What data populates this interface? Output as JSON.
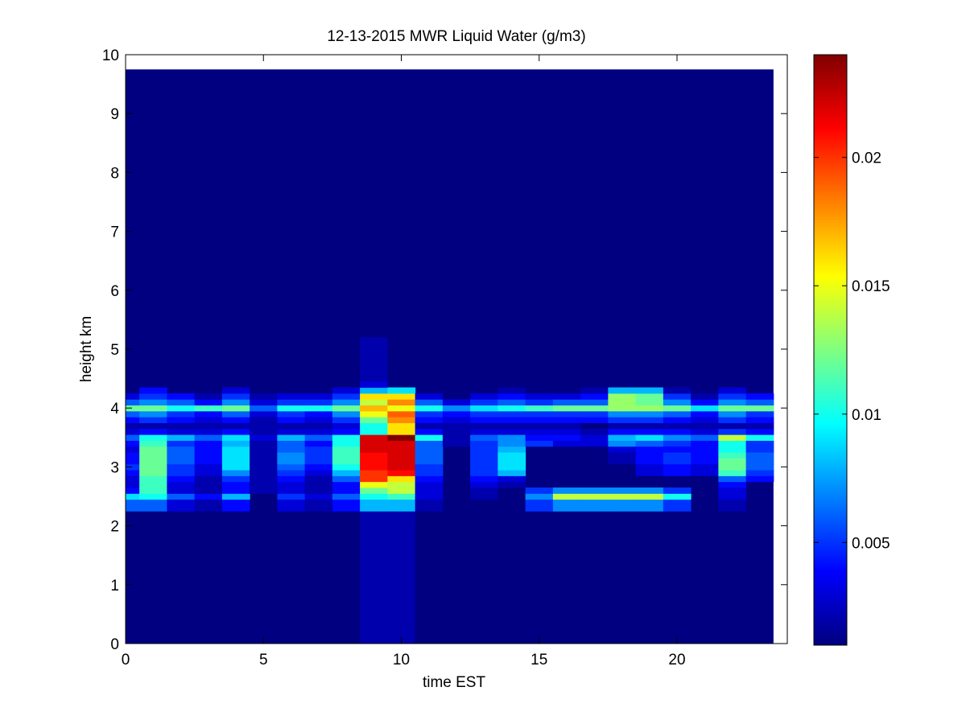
{
  "chart_data": {
    "type": "heatmap",
    "title": "12-13-2015 MWR Liquid Water (g/m3)",
    "xlabel": "time EST",
    "ylabel": "height km",
    "xlim": [
      0,
      24
    ],
    "ylim": [
      0,
      10
    ],
    "x_ticks": [
      "0",
      "5",
      "10",
      "15",
      "20"
    ],
    "x_tick_values": [
      0,
      5,
      10,
      15,
      20
    ],
    "y_ticks": [
      "0",
      "1",
      "2",
      "3",
      "4",
      "5",
      "6",
      "7",
      "8",
      "9",
      "10"
    ],
    "y_tick_values": [
      0,
      1,
      2,
      3,
      4,
      5,
      6,
      7,
      8,
      9,
      10
    ],
    "colormap": "jet",
    "colorbar": {
      "range": [
        0.001,
        0.024
      ],
      "ticks": [
        "0.005",
        "0.01",
        "0.015",
        "0.02"
      ],
      "tick_values": [
        0.005,
        0.01,
        0.015,
        0.02
      ]
    },
    "time_bin_edges": [
      0,
      0.5,
      1.5,
      2.5,
      3.5,
      4.5,
      5.5,
      6.5,
      7.5,
      8.5,
      9.5,
      10.5,
      11.5,
      12.5,
      13.5,
      14.5,
      15.5,
      16.5,
      17.5,
      18.5,
      19.5,
      20.5,
      21.5,
      22.5,
      23.5
    ],
    "background_value": 0.001,
    "data_top_km": 9.75,
    "height_levels_km": [
      2.1,
      2.4,
      2.5,
      2.6,
      2.7,
      2.8,
      2.9,
      3.0,
      3.1,
      3.2,
      3.3,
      3.4,
      3.5,
      3.6,
      3.7,
      3.8,
      3.9,
      4.0,
      4.1,
      4.2,
      4.3,
      4.4
    ],
    "column_profiles": [
      [
        0.001,
        0.006,
        0.009,
        0.004,
        0.003,
        0.003,
        0.004,
        0.005,
        0.004,
        0.004,
        0.003,
        0.004,
        0.006,
        0.003,
        0.002,
        0.004,
        0.006,
        0.012,
        0.006,
        0.003,
        0.001,
        0.001
      ],
      [
        0.001,
        0.006,
        0.01,
        0.011,
        0.011,
        0.011,
        0.012,
        0.012,
        0.012,
        0.012,
        0.012,
        0.011,
        0.01,
        0.004,
        0.002,
        0.005,
        0.007,
        0.012,
        0.007,
        0.005,
        0.004,
        0.001
      ],
      [
        0.001,
        0.003,
        0.006,
        0.003,
        0.003,
        0.004,
        0.005,
        0.005,
        0.006,
        0.006,
        0.006,
        0.005,
        0.008,
        0.003,
        0.002,
        0.004,
        0.005,
        0.01,
        0.006,
        0.004,
        0.001,
        0.001
      ],
      [
        0.001,
        0.002,
        0.004,
        0.002,
        0.002,
        0.002,
        0.003,
        0.003,
        0.004,
        0.004,
        0.004,
        0.004,
        0.006,
        0.003,
        0.002,
        0.003,
        0.004,
        0.011,
        0.004,
        0.002,
        0.001,
        0.001
      ],
      [
        0.001,
        0.004,
        0.008,
        0.004,
        0.004,
        0.005,
        0.007,
        0.009,
        0.009,
        0.009,
        0.009,
        0.008,
        0.009,
        0.004,
        0.002,
        0.004,
        0.006,
        0.012,
        0.007,
        0.005,
        0.003,
        0.001
      ],
      [
        0.001,
        0.001,
        0.001,
        0.002,
        0.002,
        0.002,
        0.002,
        0.002,
        0.002,
        0.002,
        0.002,
        0.002,
        0.003,
        0.002,
        0.002,
        0.002,
        0.003,
        0.006,
        0.003,
        0.002,
        0.001,
        0.001
      ],
      [
        0.001,
        0.003,
        0.005,
        0.003,
        0.003,
        0.004,
        0.005,
        0.006,
        0.007,
        0.007,
        0.006,
        0.006,
        0.008,
        0.003,
        0.002,
        0.004,
        0.005,
        0.01,
        0.005,
        0.003,
        0.001,
        0.001
      ],
      [
        0.001,
        0.002,
        0.003,
        0.002,
        0.002,
        0.002,
        0.003,
        0.004,
        0.005,
        0.005,
        0.005,
        0.004,
        0.006,
        0.003,
        0.002,
        0.003,
        0.004,
        0.01,
        0.005,
        0.003,
        0.001,
        0.001
      ],
      [
        0.001,
        0.004,
        0.006,
        0.004,
        0.004,
        0.006,
        0.008,
        0.01,
        0.011,
        0.011,
        0.011,
        0.01,
        0.01,
        0.004,
        0.003,
        0.005,
        0.007,
        0.012,
        0.007,
        0.005,
        0.003,
        0.001
      ],
      [
        0.002,
        0.008,
        0.01,
        0.012,
        0.015,
        0.02,
        0.02,
        0.021,
        0.021,
        0.021,
        0.022,
        0.022,
        0.022,
        0.01,
        0.01,
        0.012,
        0.015,
        0.017,
        0.014,
        0.016,
        0.008,
        0.003
      ],
      [
        0.002,
        0.008,
        0.011,
        0.014,
        0.014,
        0.016,
        0.021,
        0.022,
        0.022,
        0.022,
        0.022,
        0.022,
        0.024,
        0.016,
        0.016,
        0.018,
        0.019,
        0.015,
        0.018,
        0.016,
        0.009,
        0.001
      ],
      [
        0.001,
        0.002,
        0.003,
        0.003,
        0.003,
        0.004,
        0.005,
        0.005,
        0.006,
        0.006,
        0.006,
        0.006,
        0.01,
        0.004,
        0.002,
        0.004,
        0.005,
        0.01,
        0.006,
        0.003,
        0.001,
        0.001
      ],
      [
        0.001,
        0.001,
        0.001,
        0.001,
        0.001,
        0.001,
        0.001,
        0.001,
        0.001,
        0.001,
        0.001,
        0.002,
        0.002,
        0.002,
        0.002,
        0.003,
        0.004,
        0.007,
        0.003,
        0.001,
        0.001,
        0.001
      ],
      [
        0.001,
        0.001,
        0.002,
        0.002,
        0.003,
        0.004,
        0.005,
        0.005,
        0.005,
        0.005,
        0.005,
        0.005,
        0.006,
        0.003,
        0.002,
        0.004,
        0.005,
        0.009,
        0.005,
        0.003,
        0.001,
        0.001
      ],
      [
        0.001,
        0.001,
        0.001,
        0.001,
        0.002,
        0.003,
        0.008,
        0.009,
        0.009,
        0.009,
        0.008,
        0.007,
        0.007,
        0.003,
        0.002,
        0.004,
        0.005,
        0.01,
        0.006,
        0.004,
        0.002,
        0.001
      ],
      [
        0.001,
        0.005,
        0.007,
        0.005,
        0.001,
        0.001,
        0.001,
        0.001,
        0.001,
        0.001,
        0.001,
        0.005,
        0.004,
        0.003,
        0.002,
        0.004,
        0.005,
        0.011,
        0.005,
        0.003,
        0.001,
        0.001
      ],
      [
        0.001,
        0.007,
        0.014,
        0.007,
        0.001,
        0.001,
        0.001,
        0.001,
        0.001,
        0.001,
        0.001,
        0.003,
        0.004,
        0.003,
        0.002,
        0.004,
        0.005,
        0.012,
        0.006,
        0.003,
        0.001,
        0.001
      ],
      [
        0.001,
        0.007,
        0.014,
        0.007,
        0.001,
        0.001,
        0.001,
        0.001,
        0.001,
        0.001,
        0.001,
        0.003,
        0.003,
        0.002,
        0.001,
        0.004,
        0.005,
        0.012,
        0.006,
        0.004,
        0.002,
        0.001
      ],
      [
        0.001,
        0.007,
        0.014,
        0.007,
        0.001,
        0.001,
        0.001,
        0.001,
        0.002,
        0.002,
        0.003,
        0.007,
        0.008,
        0.004,
        0.002,
        0.005,
        0.007,
        0.013,
        0.013,
        0.013,
        0.008,
        0.001
      ],
      [
        0.001,
        0.007,
        0.014,
        0.007,
        0.001,
        0.001,
        0.003,
        0.003,
        0.004,
        0.004,
        0.004,
        0.006,
        0.009,
        0.004,
        0.002,
        0.005,
        0.007,
        0.013,
        0.012,
        0.012,
        0.008,
        0.001
      ],
      [
        0.001,
        0.005,
        0.01,
        0.005,
        0.001,
        0.001,
        0.004,
        0.004,
        0.005,
        0.005,
        0.004,
        0.005,
        0.007,
        0.004,
        0.002,
        0.004,
        0.006,
        0.012,
        0.007,
        0.005,
        0.002,
        0.001
      ],
      [
        0.001,
        0.001,
        0.001,
        0.001,
        0.001,
        0.001,
        0.003,
        0.003,
        0.004,
        0.004,
        0.004,
        0.004,
        0.006,
        0.003,
        0.002,
        0.003,
        0.004,
        0.009,
        0.004,
        0.002,
        0.001,
        0.001
      ],
      [
        0.001,
        0.002,
        0.003,
        0.003,
        0.004,
        0.006,
        0.011,
        0.012,
        0.012,
        0.011,
        0.01,
        0.01,
        0.014,
        0.005,
        0.002,
        0.005,
        0.007,
        0.012,
        0.007,
        0.005,
        0.003,
        0.001
      ],
      [
        0.001,
        0.001,
        0.001,
        0.001,
        0.001,
        0.004,
        0.005,
        0.006,
        0.006,
        0.006,
        0.005,
        0.005,
        0.01,
        0.004,
        0.002,
        0.004,
        0.005,
        0.012,
        0.006,
        0.004,
        0.001,
        0.001
      ]
    ],
    "faint_column_extensions": [
      {
        "time_range": [
          8.5,
          10.5
        ],
        "height_range": [
          0,
          2.1
        ],
        "value": 0.002
      },
      {
        "time_range": [
          8.5,
          9.5
        ],
        "height_range": [
          4.4,
          5.2
        ],
        "value": 0.002
      }
    ]
  }
}
